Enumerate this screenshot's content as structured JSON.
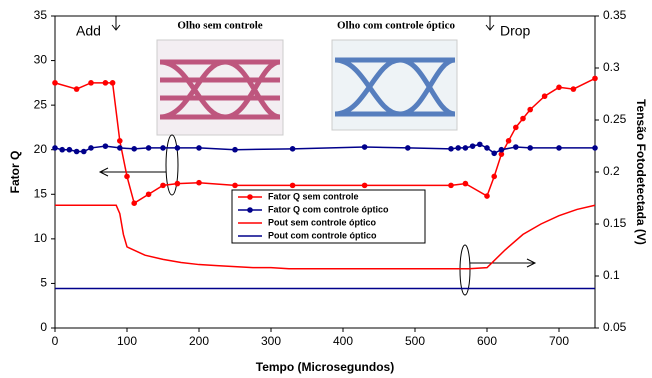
{
  "chart_data": {
    "type": "line",
    "xlabel": "Tempo (Microsegundos)",
    "ylabel": "Fator Q",
    "y2label": "Tensão Fotodetectada (V)",
    "xlim": [
      0,
      750
    ],
    "xticks": [
      0,
      100,
      200,
      300,
      400,
      500,
      600,
      700
    ],
    "ylim": [
      0,
      35
    ],
    "yticks": [
      0,
      5,
      10,
      15,
      20,
      25,
      30,
      35
    ],
    "y2lim": [
      0.05,
      0.35
    ],
    "y2ticks": [
      0.05,
      0.1,
      0.15,
      0.2,
      0.25,
      0.3,
      0.35
    ],
    "legend": "center",
    "annotations": [
      "Add",
      "Drop",
      "Olho sem controle",
      "Olho com controle óptico"
    ],
    "series": [
      {
        "name": "Fator Q sem controle",
        "color": "#ff0000",
        "markers": true,
        "x": [
          0,
          30,
          50,
          70,
          80,
          90,
          100,
          110,
          130,
          150,
          170,
          200,
          250,
          330,
          430,
          550,
          570,
          600,
          610,
          620,
          630,
          640,
          650,
          660,
          680,
          700,
          720,
          750
        ],
        "values": [
          27.5,
          26.8,
          27.5,
          27.5,
          27.5,
          21,
          17,
          14,
          15,
          16,
          16.2,
          16.3,
          16,
          16,
          16,
          16,
          16.2,
          14.8,
          17,
          19.5,
          21,
          22.5,
          23.5,
          24.5,
          26,
          27,
          26.8,
          28
        ]
      },
      {
        "name": "Fator Q com controle óptico",
        "color": "#00008b",
        "markers": true,
        "x": [
          0,
          10,
          20,
          30,
          40,
          50,
          70,
          90,
          110,
          130,
          150,
          170,
          200,
          250,
          330,
          430,
          490,
          550,
          560,
          570,
          580,
          590,
          600,
          610,
          620,
          640,
          660,
          700,
          750
        ],
        "values": [
          20.2,
          20,
          20,
          19.8,
          19.8,
          20.2,
          20.4,
          20.2,
          20.1,
          20.2,
          20.2,
          20.2,
          20.2,
          20,
          20.1,
          20.3,
          20.2,
          20.1,
          20.2,
          20.2,
          20.4,
          20.6,
          20.2,
          19.6,
          20,
          20.3,
          20.2,
          20.2,
          20.2
        ]
      },
      {
        "name": "Pout sem controle óptico",
        "color": "#ff0000",
        "markers": false,
        "axis": "y2",
        "x": [
          0,
          25,
          50,
          75,
          85,
          90,
          95,
          100,
          125,
          150,
          175,
          200,
          225,
          250,
          275,
          300,
          325,
          350,
          375,
          400,
          425,
          450,
          475,
          500,
          525,
          550,
          575,
          600,
          625,
          650,
          675,
          700,
          725,
          750
        ],
        "values": [
          0.168,
          0.168,
          0.168,
          0.168,
          0.168,
          0.16,
          0.14,
          0.128,
          0.12,
          0.116,
          0.113,
          0.111,
          0.11,
          0.109,
          0.108,
          0.108,
          0.107,
          0.107,
          0.107,
          0.107,
          0.107,
          0.107,
          0.107,
          0.107,
          0.107,
          0.107,
          0.107,
          0.108,
          0.125,
          0.14,
          0.15,
          0.158,
          0.164,
          0.168
        ]
      },
      {
        "name": "Pout com controle óptico",
        "color": "#00008b",
        "markers": false,
        "axis": "y2",
        "x": [
          0,
          250,
          500,
          750
        ],
        "values": [
          0.088,
          0.088,
          0.088,
          0.088
        ]
      }
    ]
  }
}
